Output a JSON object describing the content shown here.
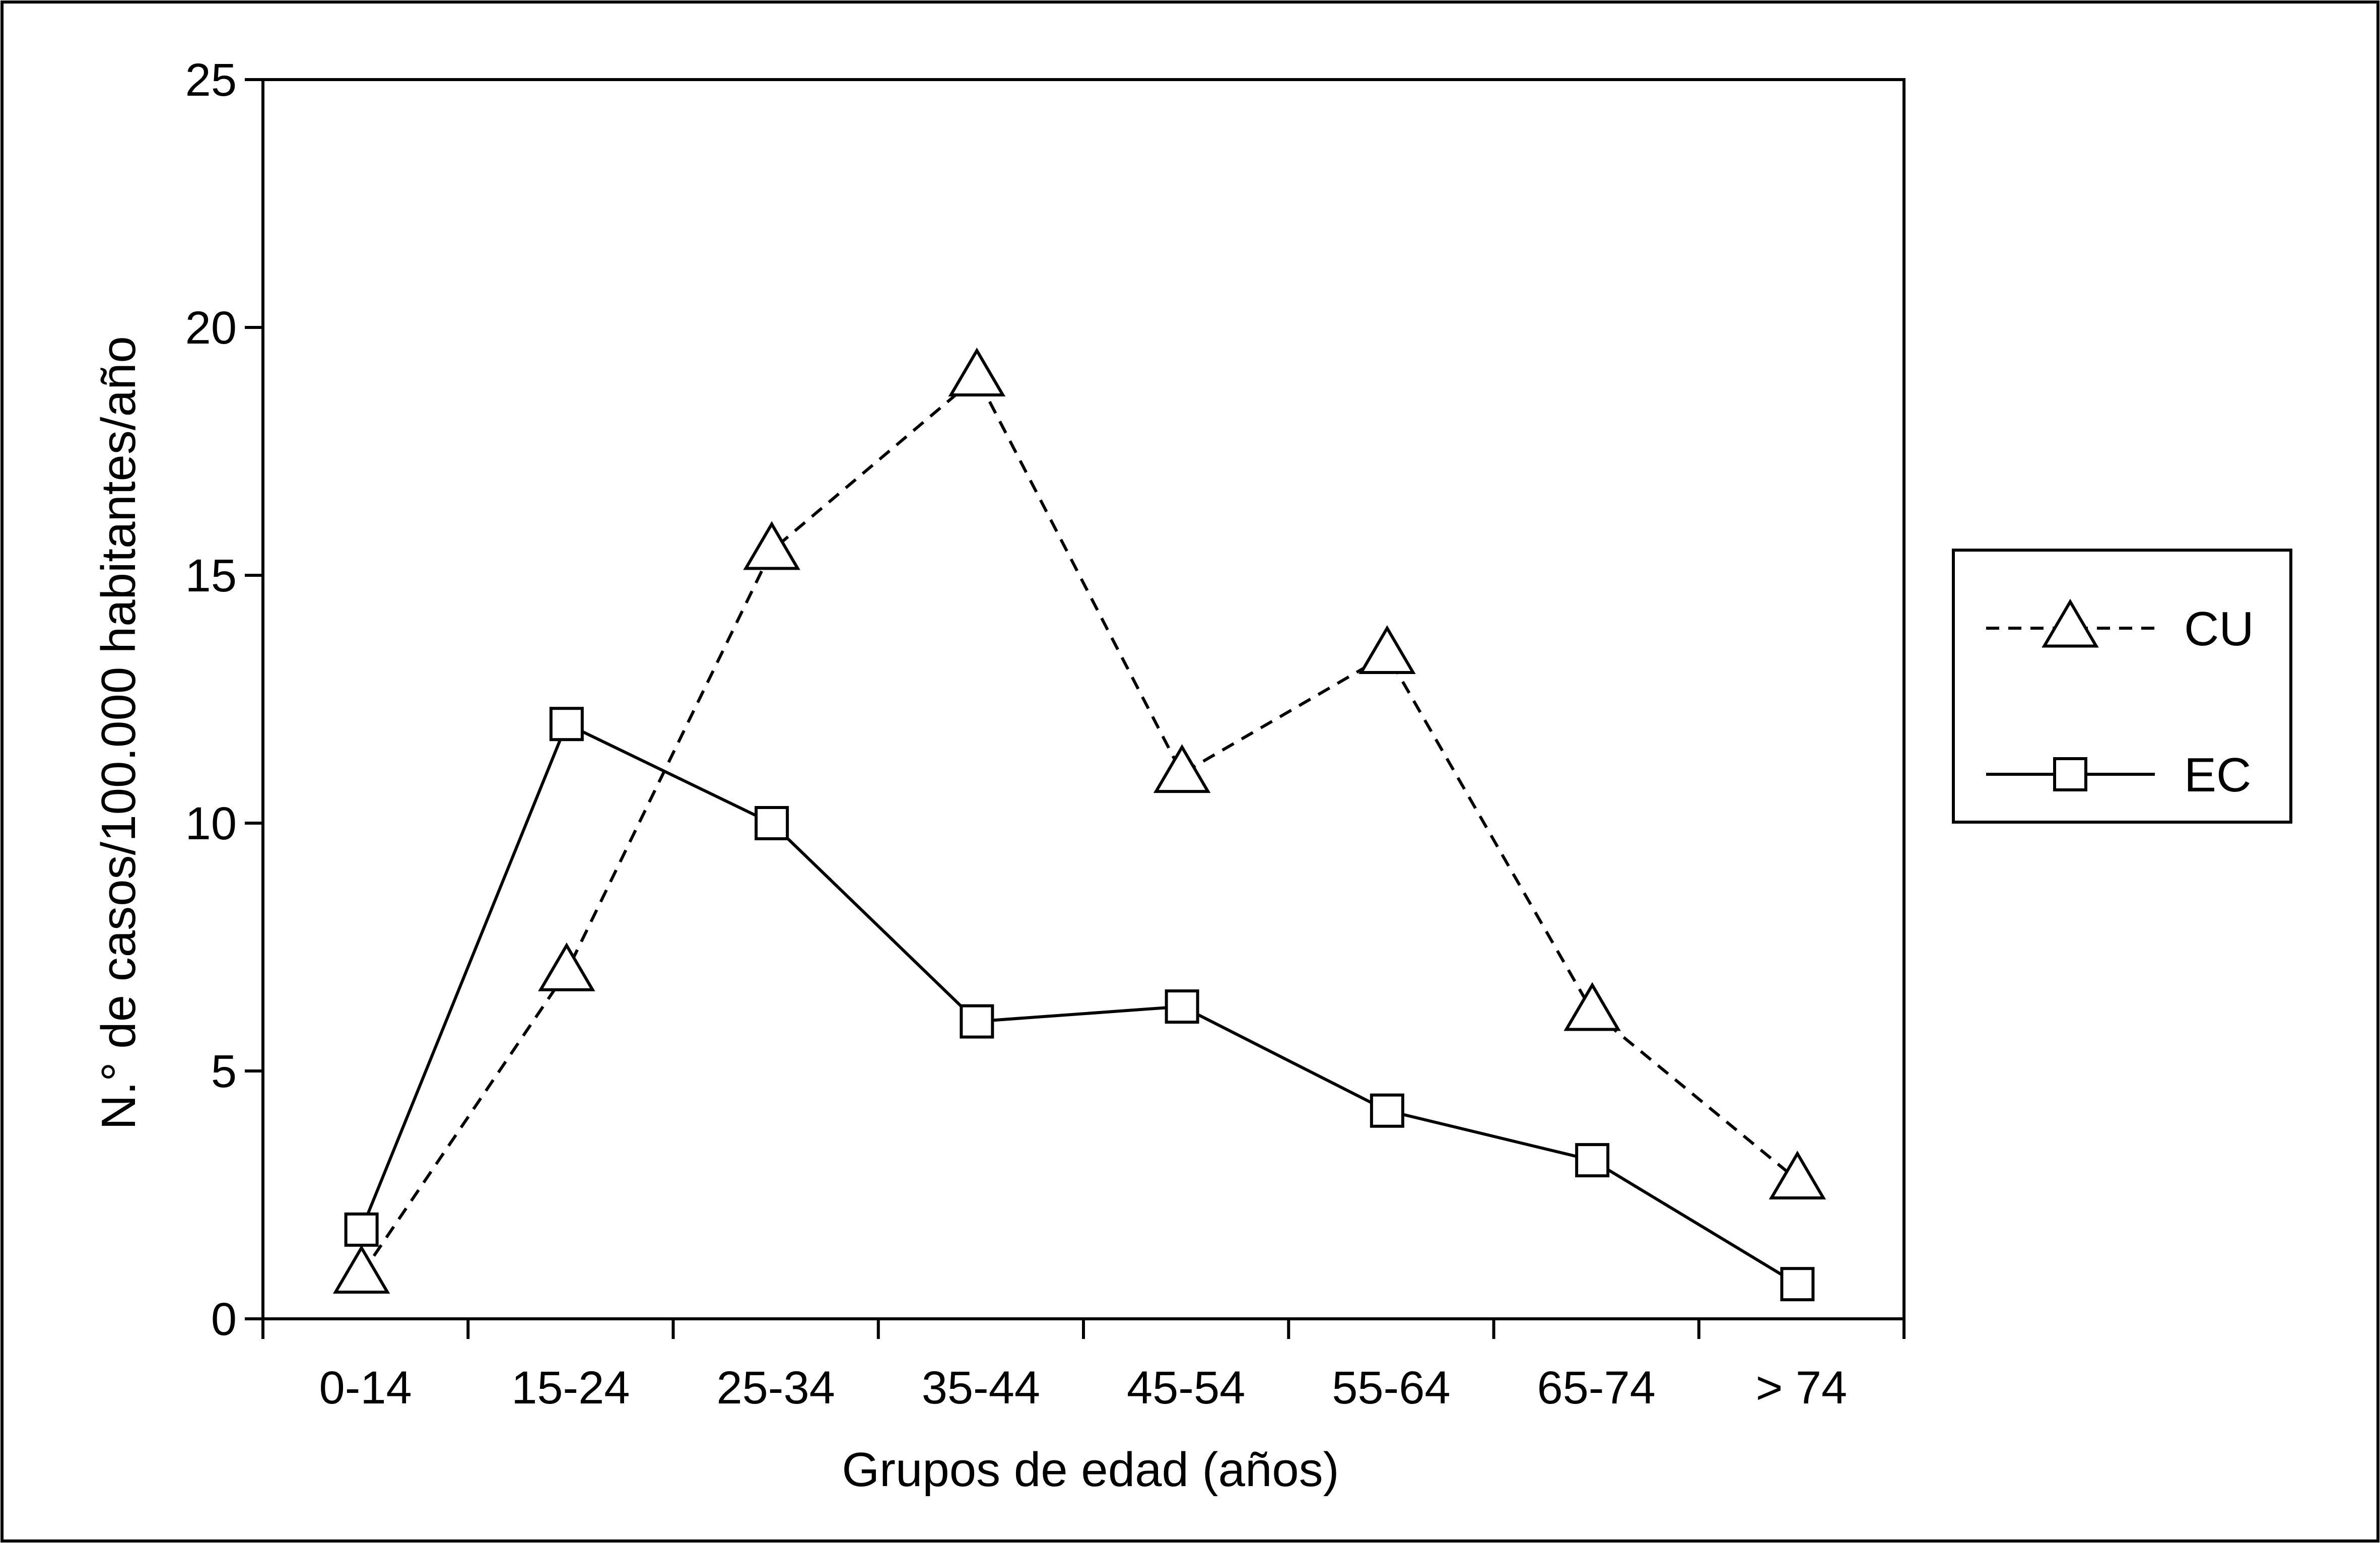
{
  "chart_data": {
    "type": "line",
    "title": "",
    "xlabel": "Grupos de edad (años)",
    "ylabel": "N.° de casos/100.000 habitantes/año",
    "categories": [
      "0-14",
      "15-24",
      "25-34",
      "35-44",
      "45-54",
      "55-64",
      "65-74",
      "> 74"
    ],
    "ylim": [
      0,
      25
    ],
    "yticks": [
      0,
      5,
      10,
      15,
      20,
      25
    ],
    "ytick_labels": [
      "0",
      "5",
      "10",
      "15",
      "20",
      "25"
    ],
    "grid": false,
    "legend_position": "right",
    "series": [
      {
        "name": "CU",
        "marker": "triangle",
        "line_style": "dashed",
        "values": [
          0.9,
          7.0,
          15.5,
          19.0,
          11.0,
          13.4,
          6.2,
          2.8
        ]
      },
      {
        "name": "EC",
        "marker": "square",
        "line_style": "solid",
        "values": [
          1.8,
          12.0,
          10.0,
          6.0,
          6.3,
          4.2,
          3.2,
          0.7
        ]
      }
    ],
    "colors": {
      "line": "#000000",
      "marker_fill": "#ffffff",
      "background": "#ffffff"
    }
  }
}
